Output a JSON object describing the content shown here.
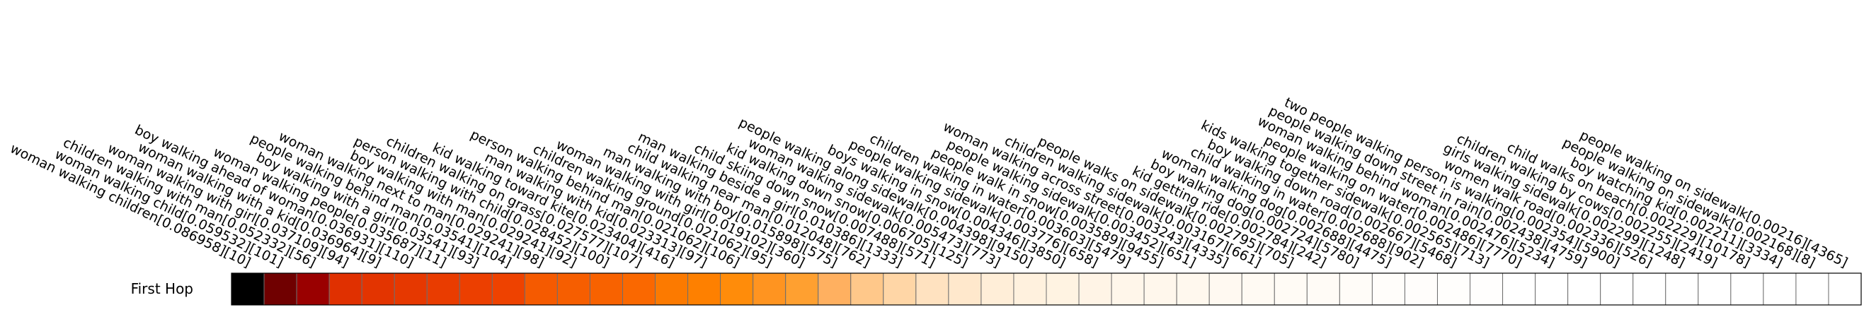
{
  "chart_data": {
    "type": "heatmap",
    "title": "",
    "row_labels": [
      "First Hop"
    ],
    "colormap": "gist_heat_r",
    "categories": [
      "woman walking children[0.086958][10]",
      "woman walking child[0.059532][101]",
      "children walking with man[0.052332][56]",
      "woman walking with girl[0.037109][94]",
      "woman walking with a kid[0.036964][9]",
      "boy walking ahead of woman[0.036931][110]",
      "woman walking people[0.035687][11]",
      "boy walking with a girl[0.03541][93]",
      "people walking behind man[0.03541][104]",
      "woman walking next to man[0.029241][98]",
      "boy walking with man[0.029241][92]",
      "person walking with child[0.028452][100]",
      "children walking on grass[0.027577][107]",
      "kid walking toward kite[0.023404][416]",
      "man walking with kid[0.023313][97]",
      "person walking behind man[0.021062][106]",
      "children walking ground[0.021062][95]",
      "woman walking with girl[0.019102][360]",
      "man walking with boy[0.015898][575]",
      "child walking near man[0.012048][762]",
      "man walking beside a girl[0.010386][1333]",
      "child skiing down snow[0.007488][571]",
      "kid walking down snow[0.006705][125]",
      "woman walking sidewalk[0.005473][773]",
      "people walking along sidewalk[0.004398][9150]",
      "boys walking in snow[0.004346][3850]",
      "people walking sidewalk[0.003776][658]",
      "children walking in water[0.003603][5479]",
      "people walk in snow[0.003589][9455]",
      "people walking sidewalk[0.003452][651]",
      "woman walking across street[0.003243][4335]",
      "children walking sidewalk[0.003167][661]",
      "people walks on sidewalk[0.002795][705]",
      "kid getting ride[0.002784][242]",
      "boy walking dog[0.002724][5780]",
      "woman walking dog[0.002688][4475]",
      "child walking in water[0.002688][902]",
      "boy walking down road[0.002667][5468]",
      "kids walking together sidewalk[0.002565][713]",
      "people walking on water[0.002486][7770]",
      "woman walking behind woman[0.002476][5234]",
      "people walking down street in rain[0.002438][4759]",
      "two people walking person is walking[0.002354][5900]",
      "women walk road[0.002336][526]",
      "girls walking sidewalk[0.002299][1248]",
      "children walking by cows[0.002255][2419]",
      "child walks on beach[0.002229][10178]",
      "boy watching kid[0.002211][3334]",
      "people walking on sidewalk[0.002168][8]",
      "people walking on sidewalk[0.00216][4365]"
    ],
    "values": [
      0.086958,
      0.059532,
      0.052332,
      0.037109,
      0.036964,
      0.036931,
      0.035687,
      0.03541,
      0.03541,
      0.029241,
      0.029241,
      0.028452,
      0.027577,
      0.023404,
      0.023313,
      0.021062,
      0.021062,
      0.019102,
      0.015898,
      0.012048,
      0.010386,
      0.007488,
      0.006705,
      0.005473,
      0.004398,
      0.004346,
      0.003776,
      0.003603,
      0.003589,
      0.003452,
      0.003243,
      0.003167,
      0.002795,
      0.002784,
      0.002724,
      0.002688,
      0.002688,
      0.002667,
      0.002565,
      0.002486,
      0.002476,
      0.002438,
      0.002354,
      0.002336,
      0.002299,
      0.002255,
      0.002229,
      0.002211,
      0.002168,
      0.00216
    ],
    "cell_colors": [
      "#000000",
      "#700000",
      "#9a0000",
      "#e03000",
      "#e33400",
      "#e63800",
      "#e93c00",
      "#ec3f00",
      "#ee4200",
      "#f55a00",
      "#f65e00",
      "#f86200",
      "#fa6800",
      "#fc7a00",
      "#fe8000",
      "#ff8c0a",
      "#ff9420",
      "#ffa030",
      "#ffb060",
      "#ffc88a",
      "#ffd6a6",
      "#ffe2c0",
      "#ffe8cc",
      "#ffeed8",
      "#fff1de",
      "#fff3e2",
      "#fff4e6",
      "#fff6ea",
      "#fff7ec",
      "#fff8ee",
      "#fff9f1",
      "#fffaf3",
      "#fffbf5",
      "#fffbf6",
      "#fffcf8",
      "#fffdfa",
      "#fffdfb",
      "#fffefc",
      "#fffefd",
      "#ffffff",
      "#ffffff",
      "#ffffff",
      "#ffffff",
      "#ffffff",
      "#ffffff",
      "#ffffff",
      "#ffffff",
      "#ffffff",
      "#ffffff",
      "#ffffff"
    ],
    "grid": true,
    "legend": "none"
  }
}
